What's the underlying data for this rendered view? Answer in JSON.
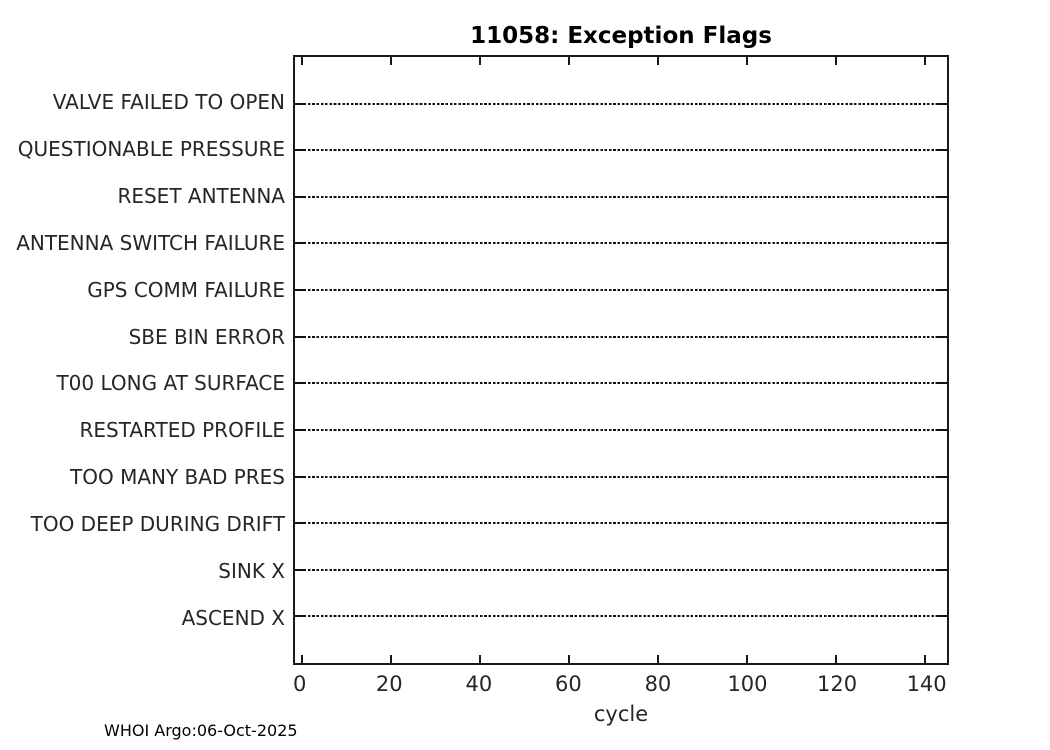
{
  "chart_data": {
    "type": "scatter",
    "title": "11058: Exception Flags",
    "xlabel": "cycle",
    "ylabel": "",
    "categories": [
      "VALVE FAILED TO OPEN",
      "QUESTIONABLE PRESSURE",
      "RESET ANTENNA",
      "ANTENNA SWITCH FAILURE",
      "GPS COMM FAILURE",
      "SBE BIN ERROR",
      "T00 LONG AT SURFACE",
      "RESTARTED PROFILE",
      "TOO MANY BAD PRES",
      "TOO DEEP DURING DRIFT",
      "SINK X",
      "ASCEND X"
    ],
    "series": [],
    "xticks": [
      0,
      20,
      40,
      60,
      80,
      100,
      120,
      140
    ],
    "xlim": [
      -1.5,
      145
    ],
    "grid": "one horizontal dotted gridline per category; axes box on; x ticks mirrored on top edge; no data points plotted",
    "legend": null
  },
  "footer": {
    "text": "WHOI Argo:06-Oct-2025"
  },
  "colors": {
    "background": "#ffffff",
    "axis_box": "#1a1a1a",
    "gridline": "#111111",
    "axis_text": "#262626",
    "title_text": "#000000"
  }
}
